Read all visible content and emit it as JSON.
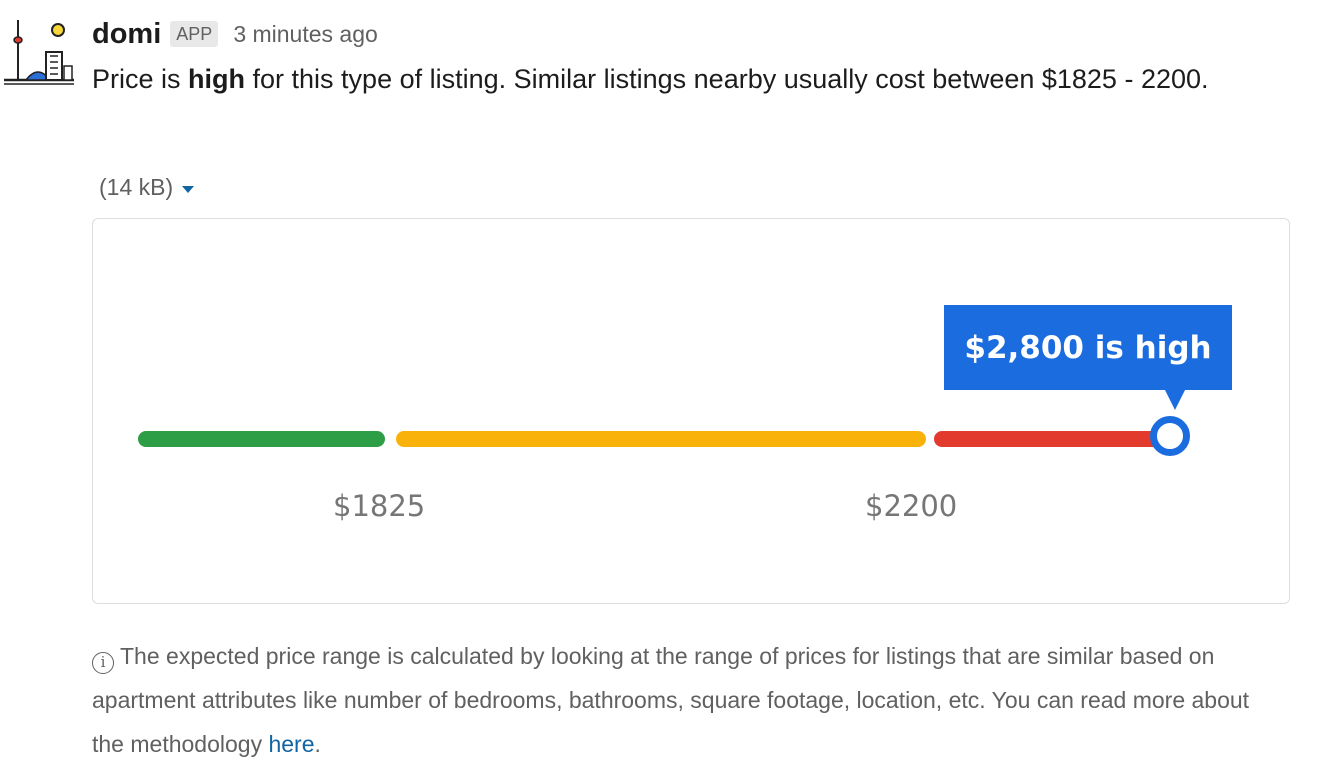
{
  "message": {
    "sender": "domi",
    "badge": "APP",
    "timestamp": "3 minutes ago",
    "text_prefix": "Price is ",
    "text_bold": "high",
    "text_suffix": " for this type of listing. Similar listings nearby usually cost between $1825 - 2200."
  },
  "attachment": {
    "size_label": "(14 kB)"
  },
  "price_gauge": {
    "callout": "$2,800 is high",
    "low_label": "$1825",
    "high_label": "$2200",
    "colors": {
      "low": "#2e9e46",
      "mid": "#f9b20a",
      "high": "#e23b2e",
      "marker": "#1a6cdf"
    }
  },
  "footnote": {
    "icon": "info-icon",
    "text": "The expected price range is calculated by looking at the range of prices for listings that are similar based on apartment attributes like number of bedrooms, bathrooms, square footage, location, etc. You can read more about the methodology ",
    "link_text": "here",
    "after_link": "."
  }
}
